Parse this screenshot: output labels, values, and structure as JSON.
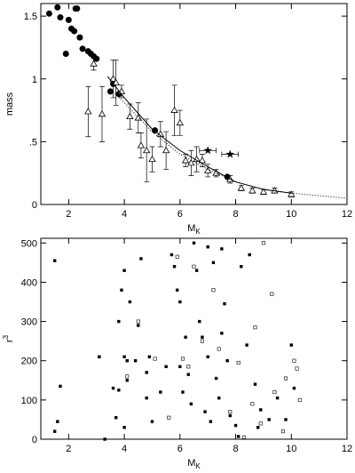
{
  "chart_data": [
    {
      "type": "scatter",
      "x_label": "M",
      "x_label_sub": "K",
      "y_label": "mass",
      "xlim": [
        1,
        12
      ],
      "ylim": [
        0,
        1.6
      ],
      "xticks": [
        2,
        4,
        6,
        8,
        10,
        12
      ],
      "yticks": [
        0,
        {
          "value": 0.5,
          "label": ".5"
        },
        1,
        1.5
      ],
      "series": [
        {
          "marker": "circle",
          "color": "#000000",
          "x": [
            1.3,
            1.6,
            1.7,
            2.0,
            2.1,
            2.2,
            2.25,
            2.3,
            1.9,
            2.4,
            2.5,
            2.7,
            2.8,
            2.9,
            3.0,
            3.5,
            3.6,
            3.8,
            5.1,
            7.7
          ],
          "values": [
            1.52,
            1.57,
            1.49,
            1.47,
            1.4,
            1.38,
            1.56,
            1.56,
            1.2,
            1.33,
            1.24,
            1.22,
            1.2,
            1.18,
            1.16,
            0.9,
            0.96,
            0.88,
            0.59,
            0.22
          ]
        },
        {
          "marker": "triangle",
          "color": "#000000",
          "x": [
            2.9,
            2.7,
            3.2,
            3.6,
            3.7,
            3.9,
            4.2,
            4.5,
            4.6,
            4.8,
            5.0,
            5.3,
            5.5,
            5.8,
            6.0,
            6.2,
            6.4,
            6.6,
            6.8,
            7.0,
            7.3,
            7.8,
            8.2,
            8.6,
            9.0,
            9.4,
            10.0
          ],
          "values": [
            1.12,
            0.74,
            0.72,
            1.0,
            0.97,
            0.9,
            0.7,
            0.69,
            0.47,
            0.43,
            0.36,
            0.56,
            0.43,
            0.75,
            0.65,
            0.35,
            0.33,
            0.36,
            0.35,
            0.27,
            0.25,
            0.2,
            0.13,
            0.11,
            0.1,
            0.11,
            0.08
          ],
          "errors": [
            0.05,
            0.2,
            0.22,
            0.15,
            0.18,
            0.05,
            0.1,
            0.12,
            0.1,
            0.25,
            0.1,
            0.1,
            0.15,
            0.2,
            0.1,
            0.05,
            0.1,
            0.1,
            0.05,
            0.05,
            0.03,
            0.03,
            0.02,
            0.02,
            0.02,
            0.02,
            0.02
          ]
        },
        {
          "marker": "star",
          "color": "#000000",
          "x": [
            7.0,
            7.8
          ],
          "values": [
            0.43,
            0.4
          ],
          "x_errors": [
            0.3,
            0.3
          ]
        },
        {
          "line": "solid",
          "color": "#000000",
          "x": [
            3.4,
            4,
            5,
            6,
            7,
            8,
            9,
            10
          ],
          "values": [
            1.02,
            0.85,
            0.6,
            0.43,
            0.3,
            0.18,
            0.12,
            0.09
          ]
        },
        {
          "line": "dotted",
          "color": "#000000",
          "x": [
            3.6,
            5,
            6,
            7,
            8,
            9,
            10,
            11,
            12
          ],
          "values": [
            0.9,
            0.58,
            0.4,
            0.28,
            0.18,
            0.12,
            0.09,
            0.07,
            0.05
          ]
        }
      ]
    },
    {
      "type": "scatter",
      "x_label": "M",
      "x_label_sub": "K",
      "y_label": "r",
      "y_label_sup": "3",
      "xlim": [
        1,
        12
      ],
      "ylim": [
        0,
        512
      ],
      "xticks": [
        2,
        4,
        6,
        8,
        10,
        12
      ],
      "yticks": [
        0,
        100,
        200,
        300,
        400,
        500
      ],
      "series": [
        {
          "marker": "square",
          "color": "#000000",
          "x": [
            1.5,
            1.6,
            1.7,
            1.5,
            3.1,
            3.6,
            3.7,
            3.8,
            3.8,
            3.9,
            4.0,
            4.0,
            4.0,
            4.1,
            4.1,
            4.2,
            4.4,
            4.5,
            4.6,
            4.8,
            4.8,
            4.9,
            5.0,
            5.3,
            5.5,
            5.7,
            5.8,
            5.9,
            6.0,
            6.0,
            6.1,
            6.2,
            6.3,
            6.4,
            6.5,
            6.6,
            6.7,
            6.8,
            6.9,
            7.0,
            7.0,
            7.1,
            7.2,
            7.3,
            7.4,
            7.5,
            7.5,
            7.6,
            7.7,
            7.8,
            8.0,
            8.2,
            8.4,
            8.5,
            8.7,
            8.8,
            8.9,
            9.2,
            9.5,
            9.8,
            10.0,
            10.1,
            3.3,
            8.1
          ],
          "values": [
            455,
            45,
            135,
            20,
            210,
            130,
            55,
            300,
            125,
            380,
            430,
            210,
            30,
            200,
            150,
            350,
            200,
            290,
            460,
            170,
            105,
            210,
            45,
            120,
            185,
            470,
            440,
            380,
            350,
            185,
            120,
            260,
            165,
            90,
            500,
            430,
            300,
            260,
            70,
            490,
            210,
            45,
            450,
            155,
            105,
            485,
            270,
            345,
            200,
            60,
            35,
            440,
            240,
            470,
            140,
            30,
            75,
            50,
            105,
            50,
            240,
            130,
            0,
            7
          ]
        },
        {
          "marker": "open-square",
          "color": "#000000",
          "x": [
            4.5,
            5.1,
            5.6,
            5.9,
            6.1,
            6.3,
            6.5,
            6.8,
            7.2,
            7.4,
            7.8,
            8.1,
            8.3,
            8.6,
            8.7,
            8.9,
            9.0,
            9.3,
            9.4,
            9.7,
            9.8,
            10.1,
            10.2,
            10.3,
            4.1
          ],
          "values": [
            300,
            205,
            55,
            465,
            205,
            185,
            440,
            250,
            380,
            230,
            70,
            195,
            5,
            90,
            285,
            40,
            500,
            370,
            120,
            20,
            155,
            200,
            180,
            100,
            160
          ]
        }
      ]
    }
  ]
}
